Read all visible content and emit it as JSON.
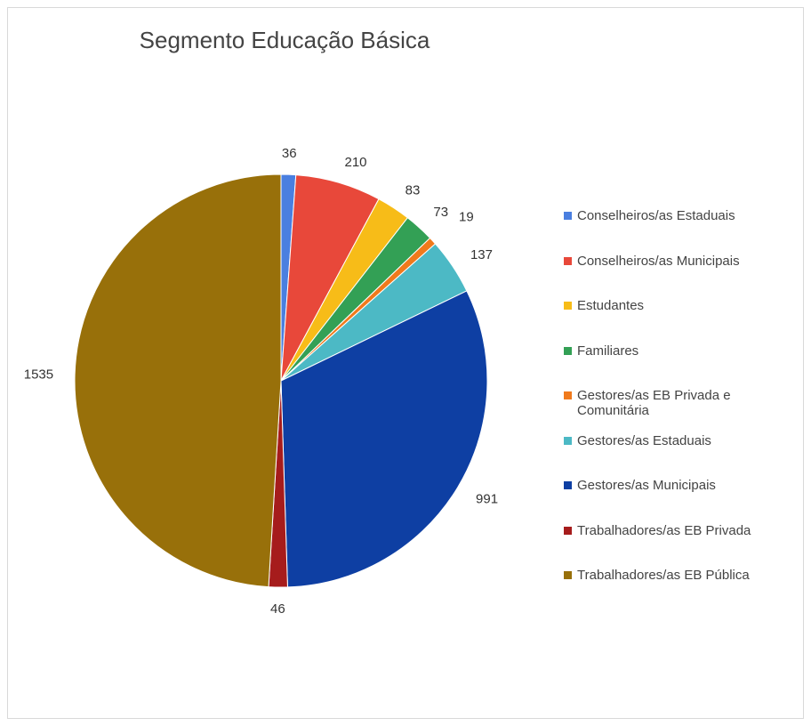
{
  "chart_data": {
    "type": "pie",
    "title": "Segmento Educação Básica",
    "legend_position": "right",
    "slices": [
      {
        "label": "Conselheiros/as Estaduais",
        "value": 36,
        "color": "#4a7fe0"
      },
      {
        "label": "Conselheiros/as Municipais",
        "value": 210,
        "color": "#e8483a"
      },
      {
        "label": "Estudantes",
        "value": 83,
        "color": "#f7bc18"
      },
      {
        "label": "Familiares",
        "value": 73,
        "color": "#33a055"
      },
      {
        "label": "Gestores/as EB Privada e Comunitária",
        "value": 19,
        "color": "#f07a1c"
      },
      {
        "label": "Gestores/as Estaduais",
        "value": 137,
        "color": "#4cb9c5"
      },
      {
        "label": "Gestores/as Municipais",
        "value": 991,
        "color": "#0e3fa3"
      },
      {
        "label": "Trabalhadores/as EB Privada",
        "value": 46,
        "color": "#a61c1c"
      },
      {
        "label": "Trabalhadores/as EB Pública",
        "value": 1535,
        "color": "#98700a"
      }
    ]
  }
}
